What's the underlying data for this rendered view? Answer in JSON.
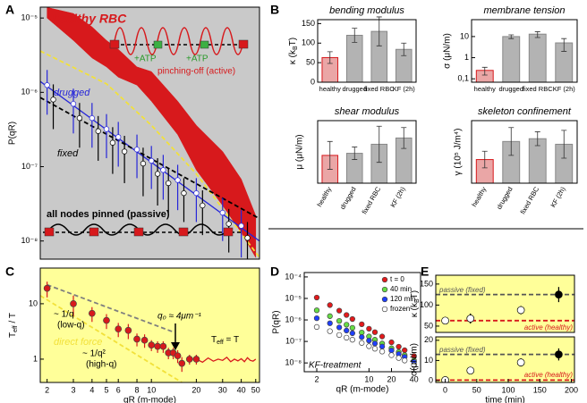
{
  "chart_data": [
    {
      "type": "line",
      "panel_label": "A",
      "ylabel": "P(qR)",
      "xlim": [
        1.8,
        53
      ],
      "ylim": [
        5.7e-09,
        1.4e-05
      ],
      "log_x": true,
      "log_y": true,
      "background": "#c9c9c9",
      "yticks": [
        {
          "value": 1e-05,
          "label": "10⁻⁵"
        },
        {
          "value": 1e-06,
          "label": "10⁻⁶"
        },
        {
          "value": 1e-07,
          "label": "10⁻⁷"
        },
        {
          "value": 1e-08,
          "label": "10⁻⁸"
        }
      ],
      "series": [
        {
          "name": "healthy RBC",
          "color": "#d7191c",
          "x": [
            2,
            3,
            4,
            5,
            6,
            8,
            10,
            15,
            20,
            30,
            40,
            50
          ],
          "upper": [
            1.39e-05,
            1.15e-05,
            7.6e-06,
            5e-06,
            3.8e-06,
            2.2e-06,
            1.9e-06,
            7.6e-07,
            3.6e-07,
            1.6e-07,
            6.8e-08,
            2.2e-08
          ],
          "lower": [
            1e-05,
            5e-06,
            2.9e-06,
            2.2e-06,
            1.6e-06,
            1.25e-06,
            7.6e-07,
            2.7e-07,
            9e-08,
            3e-08,
            1.3e-08,
            6e-09
          ]
        },
        {
          "color": "#f2e13a",
          "style": "dashed",
          "x": [
            1.8,
            5,
            10,
            20,
            53
          ],
          "values": [
            3.6e-06,
            1.3e-06,
            3.6e-07,
            8e-08,
            6e-09
          ]
        },
        {
          "name": "drugged",
          "color": "#2626d9",
          "style": "solid",
          "x": [
            1.8,
            53
          ],
          "values": [
            1.4e-06,
            1e-08
          ]
        },
        {
          "name": "fixed",
          "color": "#000000",
          "style": "dashed",
          "x": [
            1.8,
            53
          ],
          "values": [
            8.5e-07,
            2e-08
          ]
        },
        {
          "color": "#2626d9",
          "marker": "circle",
          "marker_fill": "#ffffff",
          "x": [
            2,
            3,
            4,
            5,
            6,
            8,
            10,
            12,
            15,
            20,
            30,
            40
          ],
          "values": [
            1.25e-06,
            7e-07,
            4.5e-07,
            3.2e-07,
            2.5e-07,
            1.7e-07,
            1.2e-07,
            9e-08,
            6.6e-08,
            4.4e-08,
            2.4e-08,
            1.6e-08
          ],
          "errors": [
            7.5e-07,
            4.2e-07,
            2.7e-07,
            1.9e-07,
            1.5e-07,
            1e-07,
            7e-08,
            5.4e-08,
            4e-08,
            2.6e-08,
            1.4e-08,
            1e-08
          ]
        },
        {
          "color": "#000000",
          "marker": "circle",
          "marker_fill": "#ffffff",
          "x": [
            2.2,
            3.3,
            4.4,
            5.5,
            6.6,
            8.8,
            11,
            13,
            16.5,
            22,
            33,
            44
          ],
          "values": [
            8e-07,
            4.5e-07,
            3e-07,
            2.1e-07,
            1.6e-07,
            1.1e-07,
            8e-08,
            6e-08,
            4.4e-08,
            3e-08,
            1.7e-08,
            1.1e-08
          ],
          "errors": [
            4.8e-07,
            2.7e-07,
            1.8e-07,
            1.3e-07,
            1e-07,
            7e-08,
            5e-08,
            3.6e-08,
            2.6e-08,
            1.8e-08,
            1e-08,
            7e-09
          ]
        }
      ],
      "annotations": [
        "+ATP",
        "+ATP",
        "pinching-off (active)",
        "all nodes pinned (passive)"
      ]
    },
    {
      "type": "bar",
      "panel_label": "B",
      "title": "bending modulus",
      "ylabel": [
        "κ (k",
        "B",
        "T)"
      ],
      "categories": [
        "healthy",
        "drugged",
        "fixed RBC",
        "KF (2h)"
      ],
      "values": [
        63,
        120,
        130,
        84
      ],
      "errors": [
        15,
        18,
        37,
        16
      ],
      "colors": [
        "#eaa6a6",
        "#b3b3b3",
        "#b3b3b3",
        "#b3b3b3"
      ],
      "edge_colors": [
        "#d7191c",
        "#888888",
        "#888888",
        "#888888"
      ],
      "ylim": [
        0,
        160
      ],
      "yticks": [
        0,
        50,
        100,
        150
      ]
    },
    {
      "type": "bar",
      "title": "membrane tension",
      "ylabel": "σ (μN/m)",
      "log_y": true,
      "categories": [
        "healthy",
        "drugged",
        "fixed RBC",
        "KF (2h)"
      ],
      "values": [
        0.25,
        10,
        13,
        5
      ],
      "errors": [
        0.1,
        2,
        4,
        3
      ],
      "colors": [
        "#eaa6a6",
        "#b3b3b3",
        "#b3b3b3",
        "#b3b3b3"
      ],
      "edge_colors": [
        "#d7191c",
        "#888888",
        "#888888",
        "#888888"
      ],
      "ylim": [
        0.069,
        63
      ],
      "yticks": [
        {
          "value": 0.1,
          "label": "0,1"
        },
        1,
        10
      ]
    },
    {
      "type": "bar",
      "title": "shear modulus",
      "ylabel": "μ (μN/m)",
      "categories": [
        "healthy",
        "drugged",
        "fixed RBC",
        "KF (2h)"
      ],
      "values": [
        4,
        4.3,
        5.6,
        6.5
      ],
      "errors": [
        2,
        0.9,
        2.6,
        1.5
      ],
      "colors": [
        "#eaa6a6",
        "#b3b3b3",
        "#b3b3b3",
        "#b3b3b3"
      ],
      "edge_colors": [
        "#d7191c",
        "#888888",
        "#888888",
        "#888888"
      ],
      "ylim": [
        0,
        9
      ]
    },
    {
      "type": "bar",
      "title": "skeleton confinement",
      "ylabel": "γ (10⁵ J/m⁴)",
      "categories": [
        "healthy",
        "drugged",
        "fixed RBC",
        "KF (2h)"
      ],
      "values": [
        1.7,
        3,
        3.2,
        2.8
      ],
      "errors": [
        0.6,
        1,
        0.5,
        1
      ],
      "colors": [
        "#eaa6a6",
        "#b3b3b3",
        "#b3b3b3",
        "#b3b3b3"
      ],
      "edge_colors": [
        "#d7191c",
        "#888888",
        "#888888",
        "#888888"
      ],
      "ylim": [
        0,
        4.5
      ]
    },
    {
      "type": "scatter",
      "panel_label": "C",
      "xlabel": "qR (m-mode)",
      "ylabel": [
        "T",
        "eff",
        " / T"
      ],
      "xlim": [
        1.8,
        53
      ],
      "ylim": [
        0.38,
        44
      ],
      "log_x": true,
      "log_y": true,
      "background": "#ffff99",
      "xticks": [
        2,
        3,
        4,
        5,
        6,
        8,
        10,
        20,
        30,
        40,
        50
      ],
      "yticks": [
        1,
        10
      ],
      "series": [
        {
          "color": "#7f7f7f",
          "style": "dashed",
          "x": [
            2,
            14
          ],
          "values": [
            22,
            3.1
          ]
        },
        {
          "name": "direct force",
          "color": "#f2e13a",
          "style": "dashed",
          "x": [
            1.8,
            16
          ],
          "values": [
            14,
            0.38
          ]
        },
        {
          "color": "#d7191c",
          "style": "solid",
          "x": [
            20,
            22,
            24,
            26,
            28,
            30,
            32,
            34,
            36,
            38,
            40,
            42,
            44,
            46,
            48,
            50
          ],
          "values": [
            1,
            0.88,
            1.05,
            0.92,
            1,
            0.95,
            1.08,
            0.9,
            1,
            0.93,
            1.02,
            0.9,
            1.06,
            0.95,
            0.92,
            1
          ]
        },
        {
          "color": "#d7191c",
          "marker": "circle",
          "x": [
            2,
            3,
            4,
            5,
            6,
            7,
            8,
            9,
            10,
            11,
            12,
            13,
            14,
            15,
            16,
            18,
            20
          ],
          "values": [
            19,
            10,
            6.7,
            5,
            3.5,
            3.3,
            2.3,
            2.2,
            1.8,
            1.7,
            1.7,
            1.3,
            1.3,
            1.15,
            0.84,
            1,
            1
          ],
          "errors": [
            6,
            4,
            2,
            1.5,
            1,
            1,
            0.6,
            0.6,
            0.4,
            0.4,
            0.4,
            0.3,
            0.3,
            0.3,
            0.25,
            0.2,
            0.2
          ]
        }
      ],
      "annotations": [
        "~ 1/q",
        "(low-q)",
        "~ 1/q²",
        "(high-q)",
        "q₀ ≈ 4μm⁻¹",
        [
          "T",
          "eff",
          " = T"
        ]
      ]
    },
    {
      "type": "scatter",
      "panel_label": "D",
      "xlabel": "qR (m-mode)",
      "ylabel": "P(qR)",
      "xlim": [
        1.36,
        49
      ],
      "ylim": [
        3.9e-09,
        0.00016
      ],
      "log_x": true,
      "log_y": true,
      "background": "#ffffff",
      "xticks": [
        2,
        10,
        20,
        40
      ],
      "yticks": [
        {
          "value": 0.0001,
          "label": "10⁻⁴"
        },
        {
          "value": 1e-05,
          "label": "10⁻⁵"
        },
        {
          "value": 1e-06,
          "label": "10⁻⁶"
        },
        {
          "value": 1e-07,
          "label": "10⁻⁷"
        },
        {
          "value": 1e-08,
          "label": "10⁻⁸"
        }
      ],
      "legend": "upper right",
      "series": [
        {
          "name": "t = 0",
          "color": "#e31a1c",
          "marker": "circle",
          "x": [
            2,
            3,
            4,
            5,
            6,
            8,
            10,
            12,
            15,
            20,
            25,
            30,
            40
          ],
          "values": [
            1.1e-05,
            4.9e-06,
            2.7e-06,
            1.7e-06,
            1.1e-06,
            6.3e-07,
            3.9e-07,
            2.7e-07,
            1.7e-07,
            9.1e-08,
            5.7e-08,
            3.9e-08,
            2.1e-08
          ]
        },
        {
          "name": "40 min",
          "color": "#66dd44",
          "marker": "circle",
          "x": [
            2,
            3,
            4,
            5,
            6,
            8,
            10,
            12,
            15,
            20,
            25,
            30,
            40
          ],
          "values": [
            2.8e-06,
            1.5e-06,
            9e-07,
            6e-07,
            4.3e-07,
            2.6e-07,
            1.7e-07,
            1.2e-07,
            8e-08,
            4.8e-08,
            3.2e-08,
            2.3e-08,
            1.3e-08
          ]
        },
        {
          "name": "120 min",
          "color": "#1f3fff",
          "marker": "circle",
          "x": [
            2,
            3,
            4,
            5,
            6,
            8,
            10,
            12,
            15,
            20,
            25,
            30,
            40
          ],
          "values": [
            1.2e-06,
            7e-07,
            4.5e-07,
            3.2e-07,
            2.4e-07,
            1.6e-07,
            1.1e-07,
            8e-08,
            5.8e-08,
            3.8e-08,
            2.6e-08,
            1.9e-08,
            1.1e-08
          ]
        },
        {
          "name": "frozen",
          "color": "#ffffff",
          "marker": "circle",
          "x": [
            2,
            3,
            4,
            5,
            6,
            8,
            10,
            12,
            15,
            20,
            25,
            30,
            40
          ],
          "values": [
            4.7e-07,
            3e-07,
            2e-07,
            1.5e-07,
            1.2e-07,
            8.5e-08,
            6e-08,
            4.6e-08,
            3.4e-08,
            2.3e-08,
            1.7e-08,
            1.3e-08,
            8e-09
          ]
        }
      ],
      "annotations": [
        "KF-treatment"
      ]
    },
    {
      "type": "scatter",
      "panel_label": "E",
      "ylabel": [
        "κ (k",
        "B",
        "T)"
      ],
      "xlim": [
        -15,
        205
      ],
      "ylim": [
        35,
        171
      ],
      "yticks": [
        50,
        100,
        150
      ],
      "background": "#ffff99",
      "series": [
        {
          "name": "passive (fixed)",
          "color": "#555555",
          "style": "dashed",
          "x": [
            -15,
            205
          ],
          "values": [
            125,
            125
          ]
        },
        {
          "name": "active (healthy)",
          "color": "#d7191c",
          "style": "dashed",
          "x": [
            -15,
            205
          ],
          "values": [
            63,
            63
          ]
        },
        {
          "color": "#000000",
          "marker": "circle",
          "x": [
            0,
            40,
            120,
            180
          ],
          "values": [
            63,
            68,
            88,
            125
          ],
          "errors": [
            8,
            12,
            10,
            18
          ],
          "colors": [
            "#ffffff",
            "#ffffff",
            "#ffffff",
            "#000000"
          ]
        }
      ]
    },
    {
      "type": "scatter",
      "xlabel": "time (min)",
      "ylabel": "σ(μN/m)",
      "xlim": [
        -15,
        205
      ],
      "ylim": [
        -0.9,
        21.7
      ],
      "xticks": [
        0,
        50,
        100,
        150,
        200
      ],
      "yticks": [
        0,
        10,
        20
      ],
      "background": "#ffff99",
      "series": [
        {
          "name": "passive (fixed)",
          "color": "#555555",
          "style": "dashed",
          "x": [
            -15,
            205
          ],
          "values": [
            13,
            13
          ]
        },
        {
          "name": "active (healthy)",
          "color": "#d7191c",
          "style": "dashed",
          "x": [
            -15,
            205
          ],
          "values": [
            0.25,
            0.25
          ]
        },
        {
          "color": "#000000",
          "marker": "circle",
          "x": [
            0,
            40,
            120,
            180
          ],
          "values": [
            0.25,
            5,
            9,
            13
          ],
          "errors": [
            0.2,
            1,
            2,
            3
          ],
          "colors": [
            "#ffffff",
            "#ffffff",
            "#ffffff",
            "#000000"
          ]
        }
      ]
    }
  ]
}
